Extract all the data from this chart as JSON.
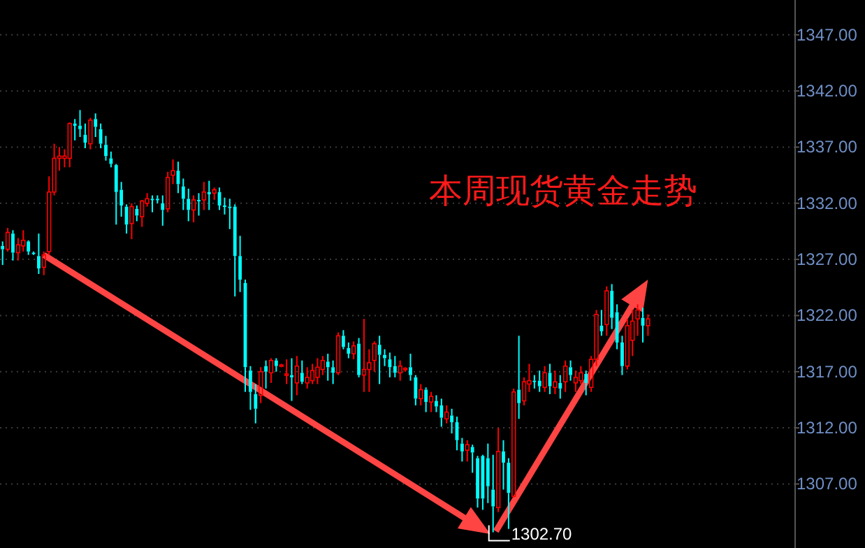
{
  "chart_data": {
    "type": "candlestick",
    "title": "本周现货黄金走势",
    "categories": [
      null,
      null,
      null,
      null,
      null,
      null,
      null,
      null,
      null,
      null,
      null,
      null,
      null,
      null,
      null,
      null,
      null,
      null,
      null,
      null,
      null,
      null,
      null,
      null,
      null,
      null,
      null,
      null,
      null,
      null,
      null,
      null,
      null,
      null,
      null,
      null,
      null,
      null,
      null,
      null,
      null,
      null,
      null,
      null,
      null,
      null,
      null,
      null,
      null,
      null,
      null,
      null,
      null,
      null,
      null,
      null,
      null,
      null,
      null,
      null,
      null,
      null,
      null,
      null,
      null,
      null,
      null,
      null,
      null,
      null,
      null,
      null,
      null,
      null,
      null,
      null,
      null,
      null,
      null,
      null,
      null,
      null,
      null,
      null,
      null,
      null,
      null,
      null,
      null,
      null,
      null,
      null,
      null,
      null,
      null,
      null,
      null,
      null,
      null,
      null,
      null,
      null,
      null,
      null,
      null,
      null,
      null,
      null,
      null,
      null,
      null,
      null,
      null,
      null,
      null,
      null,
      null,
      null,
      null,
      null,
      null,
      null,
      null,
      null,
      null,
      null,
      null,
      null,
      null,
      null,
      null,
      null,
      null,
      null,
      null,
      null,
      null,
      null,
      null,
      null,
      null,
      null,
      null,
      null,
      null,
      null,
      null,
      null,
      null,
      null,
      null,
      null,
      null,
      null
    ],
    "ohlc": [
      [
        1328.2,
        1328.6,
        1326.5,
        1327.9
      ],
      [
        1327.9,
        1329.8,
        1327.7,
        1329.4
      ],
      [
        1329.3,
        1329.6,
        1326.9,
        1327.6
      ],
      [
        1327.6,
        1328.9,
        1326.9,
        1328.3
      ],
      [
        1328.2,
        1329.6,
        1327.7,
        1328.7
      ],
      [
        1328.6,
        1328.7,
        1327.4,
        1327.7
      ],
      [
        1327.6,
        1327.7,
        1327.4,
        1327.5
      ],
      [
        1327.3,
        1329.3,
        1325.7,
        1326.2
      ],
      [
        1326.3,
        1327.7,
        1325.6,
        1327.4
      ],
      [
        1327.7,
        1334.4,
        1327.4,
        1333.0
      ],
      [
        1333.0,
        1337.3,
        1332.7,
        1336.0
      ],
      [
        1336.0,
        1337.0,
        1334.9,
        1336.2
      ],
      [
        1336.0,
        1336.8,
        1335.2,
        1336.2
      ],
      [
        1336.0,
        1339.2,
        1335.2,
        1339.1
      ],
      [
        1339.1,
        1339.5,
        1337.6,
        1338.9
      ],
      [
        1338.9,
        1340.3,
        1337.9,
        1338.6
      ],
      [
        1338.1,
        1339.1,
        1336.9,
        1337.4
      ],
      [
        1337.3,
        1339.6,
        1336.8,
        1339.4
      ],
      [
        1339.5,
        1340.0,
        1337.9,
        1338.8
      ],
      [
        1338.6,
        1339.1,
        1336.9,
        1337.3
      ],
      [
        1337.2,
        1338.0,
        1335.8,
        1336.2
      ],
      [
        1336.0,
        1336.6,
        1335.2,
        1335.5
      ],
      [
        1335.4,
        1335.5,
        1330.1,
        1333.0
      ],
      [
        1333.2,
        1333.9,
        1330.8,
        1331.8
      ],
      [
        1331.7,
        1331.9,
        1329.3,
        1330.1
      ],
      [
        1330.2,
        1332.0,
        1328.8,
        1331.7
      ],
      [
        1331.5,
        1331.8,
        1330.4,
        1330.9
      ],
      [
        1330.8,
        1332.3,
        1329.9,
        1332.2
      ],
      [
        1332.0,
        1332.9,
        1331.7,
        1332.4
      ],
      [
        1332.4,
        1332.7,
        1331.2,
        1332.3
      ],
      [
        1332.4,
        1332.7,
        1332.0,
        1332.3
      ],
      [
        1332.0,
        1332.7,
        1330.0,
        1331.4
      ],
      [
        1331.5,
        1334.8,
        1331.2,
        1334.3
      ],
      [
        1334.5,
        1335.9,
        1333.7,
        1334.9
      ],
      [
        1334.9,
        1335.7,
        1332.9,
        1333.7
      ],
      [
        1333.5,
        1334.2,
        1331.4,
        1332.4
      ],
      [
        1332.4,
        1333.3,
        1330.4,
        1331.4
      ],
      [
        1331.4,
        1332.7,
        1330.3,
        1332.3
      ],
      [
        1332.3,
        1332.9,
        1330.9,
        1332.2
      ],
      [
        1332.3,
        1333.9,
        1331.4,
        1333.0
      ],
      [
        1333.0,
        1334.0,
        1331.4,
        1332.8
      ],
      [
        1332.9,
        1333.4,
        1332.3,
        1333.2
      ],
      [
        1333.0,
        1333.4,
        1331.4,
        1331.8
      ],
      [
        1331.8,
        1332.5,
        1331.0,
        1331.7
      ],
      [
        1331.7,
        1332.4,
        1329.7,
        1331.6
      ],
      [
        1331.7,
        1331.9,
        1323.7,
        1327.3
      ],
      [
        1327.3,
        1329.1,
        1324.1,
        1325.2
      ],
      [
        1324.9,
        1325.2,
        1315.2,
        1317.4
      ],
      [
        1317.1,
        1317.5,
        1313.6,
        1315.2
      ],
      [
        1315.0,
        1315.9,
        1312.4,
        1313.7
      ],
      [
        1314.9,
        1317.4,
        1314.2,
        1317.0
      ],
      [
        1317.5,
        1318.0,
        1315.5,
        1317.0
      ],
      [
        1316.9,
        1318.2,
        1316.0,
        1318.0
      ],
      [
        1318.0,
        1318.2,
        1317.0,
        1317.5
      ],
      [
        1317.5,
        1317.7,
        1317.4,
        1317.6
      ],
      [
        1316.7,
        1318.1,
        1315.9,
        1316.8
      ],
      [
        1316.7,
        1318.2,
        1314.4,
        1316.5
      ],
      [
        1316.0,
        1318.4,
        1314.9,
        1317.5
      ],
      [
        1316.9,
        1318.0,
        1315.9,
        1316.1
      ],
      [
        1316.0,
        1317.4,
        1315.5,
        1316.5
      ],
      [
        1316.2,
        1317.7,
        1315.9,
        1317.1
      ],
      [
        1316.5,
        1318.2,
        1315.9,
        1317.4
      ],
      [
        1317.2,
        1318.4,
        1316.7,
        1318.0
      ],
      [
        1317.9,
        1318.6,
        1316.2,
        1317.4
      ],
      [
        1317.4,
        1318.0,
        1315.9,
        1316.9
      ],
      [
        1316.9,
        1320.5,
        1316.7,
        1320.2
      ],
      [
        1320.2,
        1320.7,
        1319.0,
        1319.2
      ],
      [
        1319.1,
        1319.6,
        1318.2,
        1318.6
      ],
      [
        1318.6,
        1319.7,
        1318.1,
        1319.3
      ],
      [
        1319.5,
        1320.0,
        1316.5,
        1316.7
      ],
      [
        1316.7,
        1321.7,
        1315.2,
        1317.2
      ],
      [
        1317.2,
        1319.0,
        1315.2,
        1317.8
      ],
      [
        1318.0,
        1319.7,
        1317.0,
        1319.5
      ],
      [
        1319.4,
        1320.2,
        1315.9,
        1318.5
      ],
      [
        1318.5,
        1319.0,
        1317.5,
        1318.2
      ],
      [
        1318.1,
        1318.7,
        1316.5,
        1317.4
      ],
      [
        1317.5,
        1318.4,
        1316.5,
        1316.9
      ],
      [
        1316.9,
        1318.0,
        1316.2,
        1317.5
      ],
      [
        1317.2,
        1317.4,
        1317.0,
        1317.3
      ],
      [
        1317.4,
        1318.6,
        1316.2,
        1316.7
      ],
      [
        1316.5,
        1316.7,
        1314.0,
        1314.6
      ],
      [
        1314.6,
        1315.9,
        1314.0,
        1315.4
      ],
      [
        1315.4,
        1315.6,
        1313.4,
        1314.3
      ],
      [
        1314.3,
        1315.2,
        1313.4,
        1314.8
      ],
      [
        1314.4,
        1314.9,
        1313.4,
        1313.9
      ],
      [
        1314.0,
        1314.6,
        1312.1,
        1312.9
      ],
      [
        1312.8,
        1314.0,
        1312.4,
        1313.4
      ],
      [
        1313.1,
        1313.7,
        1311.5,
        1312.5
      ],
      [
        1312.5,
        1313.0,
        1310.0,
        1310.9
      ],
      [
        1310.6,
        1311.1,
        1309.0,
        1309.9
      ],
      [
        1310.0,
        1310.9,
        1309.0,
        1310.5
      ],
      [
        1310.3,
        1310.5,
        1308.0,
        1309.8
      ],
      [
        1309.3,
        1309.5,
        1304.9,
        1305.7
      ],
      [
        1309.5,
        1309.6,
        1304.7,
        1305.7
      ],
      [
        1309.3,
        1310.6,
        1305.3,
        1306.8
      ],
      [
        1306.5,
        1309.6,
        1302.7,
        1305.0
      ],
      [
        1304.9,
        1312.0,
        1304.5,
        1309.9
      ],
      [
        1309.9,
        1310.9,
        1306.5,
        1308.9
      ],
      [
        1308.9,
        1309.3,
        1303.0,
        1306.2
      ],
      [
        1305.9,
        1315.5,
        1305.8,
        1315.2
      ],
      [
        1315.4,
        1320.2,
        1312.8,
        1314.2
      ],
      [
        1314.4,
        1316.5,
        1314.0,
        1316.1
      ],
      [
        1315.9,
        1317.7,
        1315.2,
        1316.2
      ],
      [
        1316.2,
        1316.7,
        1315.5,
        1316.1
      ],
      [
        1316.2,
        1317.1,
        1315.2,
        1315.7
      ],
      [
        1315.6,
        1317.5,
        1315.2,
        1316.9
      ],
      [
        1316.9,
        1317.7,
        1315.0,
        1315.7
      ],
      [
        1315.6,
        1317.1,
        1315.0,
        1316.1
      ],
      [
        1316.0,
        1316.7,
        1314.6,
        1315.5
      ],
      [
        1316.1,
        1318.0,
        1315.2,
        1317.5
      ],
      [
        1317.4,
        1318.0,
        1316.2,
        1316.7
      ],
      [
        1316.0,
        1317.1,
        1315.2,
        1316.5
      ],
      [
        1316.2,
        1317.5,
        1315.9,
        1316.9
      ],
      [
        1316.8,
        1317.1,
        1314.9,
        1316.0
      ],
      [
        1315.6,
        1318.4,
        1315.2,
        1318.1
      ],
      [
        1318.1,
        1322.5,
        1317.5,
        1322.1
      ],
      [
        1321.1,
        1322.5,
        1320.2,
        1320.6
      ],
      [
        1321.2,
        1324.6,
        1320.2,
        1324.2
      ],
      [
        1324.2,
        1324.8,
        1320.8,
        1321.8
      ],
      [
        1322.3,
        1323.0,
        1319.0,
        1319.6
      ],
      [
        1319.6,
        1320.2,
        1316.7,
        1317.5
      ],
      [
        1317.5,
        1321.7,
        1317.2,
        1321.1
      ],
      [
        1319.8,
        1322.5,
        1318.4,
        1321.5
      ],
      [
        1321.7,
        1323.0,
        1320.2,
        1322.5
      ],
      [
        1321.8,
        1322.7,
        1319.6,
        1321.1
      ],
      [
        1321.1,
        1322.1,
        1320.2,
        1321.7
      ],
      null,
      null,
      null,
      null,
      null,
      null,
      null,
      null,
      null,
      null,
      null,
      null,
      null,
      null,
      null,
      null,
      null,
      null,
      null,
      null,
      null,
      null,
      null,
      null,
      null,
      null,
      null,
      null
    ],
    "colors": [
      "#00ffff",
      "#ff0000",
      "#00ffff",
      "#ff0000",
      "#ff0000",
      "#00ffff",
      "#00ffff",
      "#00ffff",
      "#ff0000",
      "#ff0000",
      "#ff0000",
      "#ff0000",
      "#ff0000",
      "#ff0000",
      "#00ffff",
      "#00ffff",
      "#00ffff",
      "#ff0000",
      "#00ffff",
      "#00ffff",
      "#00ffff",
      "#00ffff",
      "#00ffff",
      "#00ffff",
      "#00ffff",
      "#ff0000",
      "#00ffff",
      "#ff0000",
      "#ff0000",
      "#00ffff",
      "#00ffff",
      "#00ffff",
      "#ff0000",
      "#ff0000",
      "#00ffff",
      "#00ffff",
      "#00ffff",
      "#ff0000",
      "#00ffff",
      "#ff0000",
      "#00ffff",
      "#ff0000",
      "#00ffff",
      "#00ffff",
      "#00ffff",
      "#00ffff",
      "#00ffff",
      "#00ffff",
      "#00ffff",
      "#00ffff",
      "#ff0000",
      "#00ffff",
      "#ff0000",
      "#00ffff",
      "#ff0000",
      "#ff0000",
      "#00ffff",
      "#ff0000",
      "#00ffff",
      "#ff0000",
      "#ff0000",
      "#ff0000",
      "#ff0000",
      "#00ffff",
      "#00ffff",
      "#ff0000",
      "#00ffff",
      "#00ffff",
      "#ff0000",
      "#00ffff",
      "#ff0000",
      "#ff0000",
      "#ff0000",
      "#00ffff",
      "#00ffff",
      "#00ffff",
      "#00ffff",
      "#ff0000",
      "#ff0000",
      "#00ffff",
      "#00ffff",
      "#ff0000",
      "#00ffff",
      "#ff0000",
      "#00ffff",
      "#00ffff",
      "#ff0000",
      "#00ffff",
      "#00ffff",
      "#00ffff",
      "#ff0000",
      "#00ffff",
      "#00ffff",
      "#00ffff",
      "#00ffff",
      "#00ffff",
      "#ff0000",
      "#00ffff",
      "#00ffff",
      "#ff0000",
      "#00ffff",
      "#ff0000",
      "#ff0000",
      "#00ffff",
      "#00ffff",
      "#ff0000",
      "#00ffff",
      "#ff0000",
      "#00ffff",
      "#ff0000",
      "#00ffff",
      "#ff0000",
      "#ff0000",
      "#00ffff",
      "#ff0000",
      "#ff0000",
      "#00ffff",
      "#ff0000",
      "#00ffff",
      "#00ffff",
      "#00ffff",
      "#ff0000",
      "#ff0000",
      "#ff0000",
      "#00ffff",
      "#ff0000",
      null,
      null,
      null,
      null,
      null,
      null,
      null,
      null,
      null,
      null,
      null,
      null,
      null,
      null,
      null,
      null,
      null,
      null,
      null,
      null,
      null,
      null,
      null,
      null,
      null,
      null,
      null,
      null
    ],
    "ylim": [
      1301.3,
      1350.1
    ],
    "yticks": [
      {
        "value": 1307,
        "label": "1307.00"
      },
      {
        "value": 1312,
        "label": "1312.00"
      },
      {
        "value": 1317,
        "label": "1317.00"
      },
      {
        "value": 1322,
        "label": "1322.00"
      },
      {
        "value": 1327,
        "label": "1327.00"
      },
      {
        "value": 1332,
        "label": "1332.00"
      },
      {
        "value": 1337,
        "label": "1337.00"
      },
      {
        "value": 1342,
        "label": "1342.00"
      },
      {
        "value": 1347,
        "label": "1347.00"
      }
    ],
    "grid": "y",
    "annotations": [
      "1302.70"
    ]
  }
}
